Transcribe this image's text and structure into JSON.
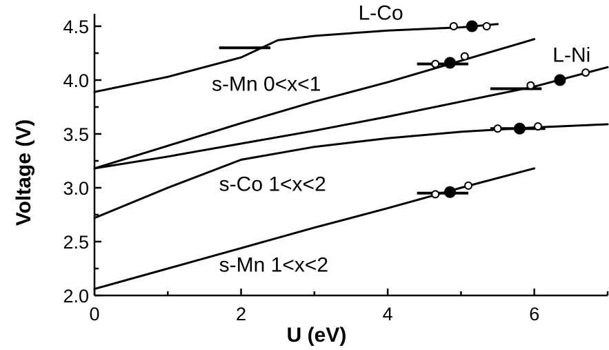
{
  "chart_data": {
    "type": "line",
    "xlabel": "U (eV)",
    "ylabel": "Voltage (V)",
    "xlim": [
      0,
      7
    ],
    "ylim": [
      2.0,
      4.6
    ],
    "x_ticks": [
      0,
      2,
      4,
      6
    ],
    "x_tick_labels": [
      "0",
      "2",
      "4",
      "6"
    ],
    "x_minor_ticks": [
      1,
      3,
      5,
      7
    ],
    "y_ticks": [
      2.0,
      2.5,
      3.0,
      3.5,
      4.0,
      4.5
    ],
    "y_tick_labels": [
      "2.0",
      "2.5",
      "3.0",
      "3.5",
      "4.0",
      "4.5"
    ],
    "y_minor_ticks": [
      2.25,
      2.75,
      3.25,
      3.75,
      4.25
    ],
    "grid": false,
    "series": [
      {
        "name": "L-Co",
        "x": [
          0,
          1,
          2,
          2.5,
          3,
          4,
          5,
          5.5
        ],
        "y": [
          3.89,
          4.03,
          4.21,
          4.37,
          4.41,
          4.46,
          4.49,
          4.52
        ],
        "open_points": [
          {
            "x": 4.9,
            "y": 4.5
          },
          {
            "x": 5.35,
            "y": 4.5
          }
        ],
        "filled_point": {
          "x": 5.15,
          "y": 4.5
        },
        "reference": {
          "x": [
            1.7,
            2.4
          ],
          "y": 4.3
        }
      },
      {
        "name": "s-Mn 0<x<1",
        "x": [
          0,
          1,
          2,
          3,
          4,
          5,
          6
        ],
        "y": [
          3.18,
          3.39,
          3.6,
          3.8,
          3.98,
          4.18,
          4.38
        ],
        "open_points": [
          {
            "x": 4.65,
            "y": 4.15
          },
          {
            "x": 5.05,
            "y": 4.22
          }
        ],
        "filled_point": {
          "x": 4.85,
          "y": 4.16
        },
        "reference": {
          "x": [
            4.4,
            5.1
          ],
          "y": 4.15
        }
      },
      {
        "name": "L-Ni",
        "x": [
          0,
          1,
          2,
          3,
          4,
          5,
          6,
          7
        ],
        "y": [
          3.18,
          3.29,
          3.41,
          3.53,
          3.66,
          3.8,
          3.94,
          4.12
        ],
        "open_points": [
          {
            "x": 5.95,
            "y": 3.95
          },
          {
            "x": 6.7,
            "y": 4.07
          }
        ],
        "filled_point": {
          "x": 6.35,
          "y": 4.0
        },
        "reference": {
          "x": [
            5.4,
            6.1
          ],
          "y": 3.92
        }
      },
      {
        "name": "s-Co 1<x<2",
        "x": [
          0,
          1,
          2,
          3,
          4,
          5,
          6,
          7
        ],
        "y": [
          2.72,
          3.0,
          3.26,
          3.38,
          3.46,
          3.52,
          3.56,
          3.59
        ],
        "open_points": [
          {
            "x": 5.5,
            "y": 3.55
          },
          {
            "x": 6.05,
            "y": 3.57
          }
        ],
        "filled_point": {
          "x": 5.8,
          "y": 3.55
        },
        "reference": {
          "x": [
            5.4,
            6.15
          ],
          "y": 3.55
        }
      },
      {
        "name": "s-Mn 1<x<2",
        "x": [
          0,
          1,
          2,
          3,
          4,
          5,
          6
        ],
        "y": [
          2.06,
          2.25,
          2.44,
          2.63,
          2.81,
          3.0,
          3.18
        ],
        "open_points": [
          {
            "x": 4.65,
            "y": 2.94
          },
          {
            "x": 5.1,
            "y": 3.02
          }
        ],
        "filled_point": {
          "x": 4.85,
          "y": 2.96
        },
        "reference": {
          "x": [
            4.4,
            5.1
          ],
          "y": 2.95
        }
      }
    ],
    "annotations": [
      {
        "text": "L-Co",
        "x": 3.6,
        "y": 4.56
      },
      {
        "text": "s-Mn 0<x<1",
        "x": 1.6,
        "y": 3.9
      },
      {
        "text": "L-Ni",
        "x": 6.25,
        "y": 4.17
      },
      {
        "text": "s-Co 1<x<2",
        "x": 1.7,
        "y": 2.97
      },
      {
        "text": "s-Mn 1<x<2",
        "x": 1.7,
        "y": 2.22
      }
    ]
  }
}
